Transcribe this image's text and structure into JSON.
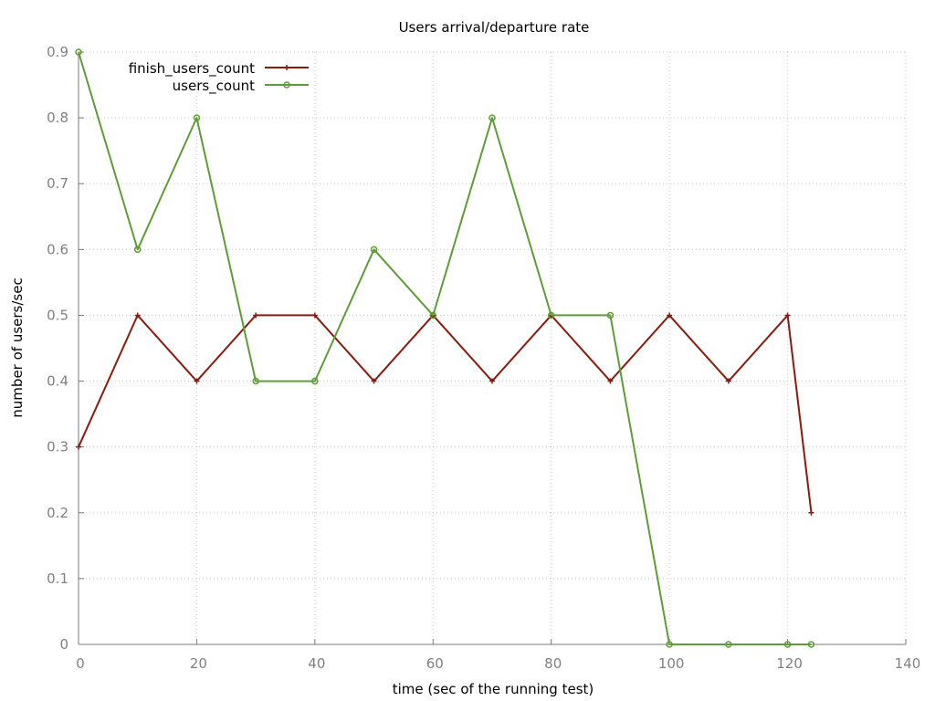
{
  "chart_data": {
    "type": "line",
    "title": "Users arrival/departure rate",
    "xlabel": "time (sec of the running test)",
    "ylabel": "number of users/sec",
    "xlim": [
      0,
      140
    ],
    "ylim": [
      0,
      0.9
    ],
    "xticks": [
      0,
      20,
      40,
      60,
      80,
      100,
      120,
      140
    ],
    "yticks": [
      0,
      0.1,
      0.2,
      0.3,
      0.4,
      0.5,
      0.6,
      0.7,
      0.8,
      0.9
    ],
    "xtick_labels": [
      "0",
      "20",
      "40",
      "60",
      "80",
      "100",
      "120",
      "140"
    ],
    "ytick_labels": [
      "0",
      "0.1",
      "0.2",
      "0.3",
      "0.4",
      "0.5",
      "0.6",
      "0.7",
      "0.8",
      "0.9"
    ],
    "grid": true,
    "legend_position": "top-left",
    "series": [
      {
        "name": "finish_users_count",
        "color": "#8b1a0e",
        "marker": "plus",
        "x": [
          0,
          10,
          20,
          30,
          40,
          50,
          60,
          70,
          80,
          90,
          100,
          110,
          120,
          124
        ],
        "y": [
          0.3,
          0.5,
          0.4,
          0.5,
          0.5,
          0.4,
          0.5,
          0.4,
          0.5,
          0.4,
          0.5,
          0.4,
          0.5,
          0.2
        ]
      },
      {
        "name": "users_count",
        "color": "#5e9c36",
        "marker": "circle",
        "x": [
          0,
          10,
          20,
          30,
          40,
          50,
          60,
          70,
          80,
          90,
          100,
          110,
          120,
          124
        ],
        "y": [
          0.9,
          0.6,
          0.8,
          0.4,
          0.4,
          0.6,
          0.5,
          0.8,
          0.5,
          0.5,
          0,
          0,
          0,
          0
        ]
      }
    ]
  }
}
